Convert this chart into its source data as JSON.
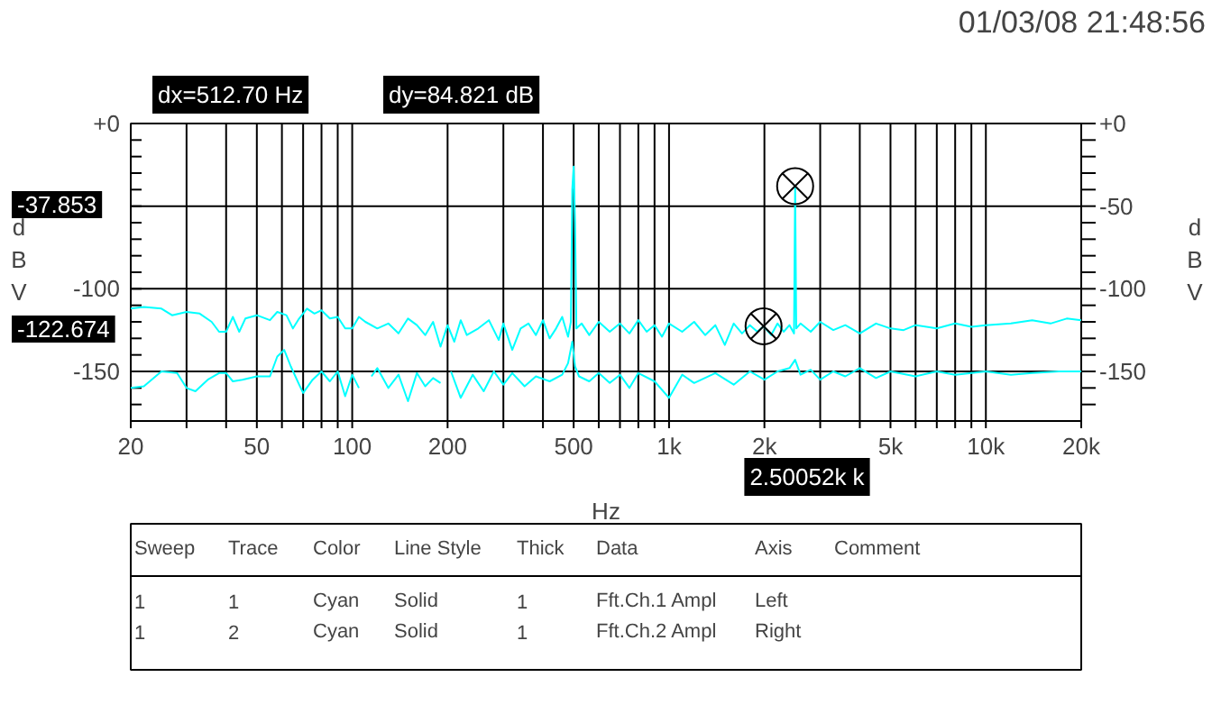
{
  "chart_data": {
    "type": "line",
    "xlabel": "Hz",
    "ylabel": "dBV",
    "y2label": "dBV",
    "xlim": [
      20,
      20000
    ],
    "xticks": [
      20,
      {
        "value": 30,
        "label": null
      },
      {
        "value": 40,
        "label": null
      },
      50,
      {
        "value": 60,
        "label": null
      },
      {
        "value": 70,
        "label": null
      },
      {
        "value": 80,
        "label": null
      },
      {
        "value": 90,
        "label": null
      },
      100,
      200,
      {
        "value": 300,
        "label": null
      },
      {
        "value": 400,
        "label": null
      },
      500,
      {
        "value": 600,
        "label": null
      },
      {
        "value": 700,
        "label": null
      },
      {
        "value": 800,
        "label": null
      },
      {
        "value": 900,
        "label": null
      },
      {
        "value": 1000,
        "label": "1k"
      },
      {
        "value": 2000,
        "label": "2k"
      },
      {
        "value": 3000,
        "label": null
      },
      {
        "value": 4000,
        "label": null
      },
      {
        "value": 5000,
        "label": "5k"
      },
      {
        "value": 6000,
        "label": null
      },
      {
        "value": 7000,
        "label": null
      },
      {
        "value": 8000,
        "label": null
      },
      {
        "value": 9000,
        "label": null
      },
      {
        "value": 10000,
        "label": "10k"
      },
      {
        "value": 20000,
        "label": "20k"
      }
    ],
    "ylim": [
      -180,
      0
    ],
    "yticks": [
      {
        "value": 0,
        "label": "+0"
      },
      {
        "value": -10,
        "label": null
      },
      {
        "value": -20,
        "label": null
      },
      {
        "value": -30,
        "label": null
      },
      {
        "value": -40,
        "label": null
      },
      {
        "value": -50,
        "label": null
      },
      {
        "value": -60,
        "label": null
      },
      {
        "value": -70,
        "label": null
      },
      {
        "value": -80,
        "label": null
      },
      {
        "value": -90,
        "label": null
      },
      -100,
      {
        "value": -110,
        "label": null
      },
      {
        "value": -120,
        "label": null
      },
      {
        "value": -130,
        "label": null
      },
      {
        "value": -140,
        "label": null
      },
      -150,
      {
        "value": -160,
        "label": null
      },
      {
        "value": -170,
        "label": null
      }
    ],
    "y2lim": [
      -180,
      0
    ],
    "y2ticks": [
      {
        "value": 0,
        "label": "+0"
      },
      {
        "value": -10,
        "label": null
      },
      {
        "value": -20,
        "label": null
      },
      {
        "value": -30,
        "label": null
      },
      {
        "value": -40,
        "label": null
      },
      -50,
      {
        "value": -60,
        "label": null
      },
      {
        "value": -70,
        "label": null
      },
      {
        "value": -80,
        "label": null
      },
      {
        "value": -90,
        "label": null
      },
      -100,
      {
        "value": -110,
        "label": null
      },
      {
        "value": -120,
        "label": null
      },
      {
        "value": -130,
        "label": null
      },
      {
        "value": -140,
        "label": null
      },
      -150,
      {
        "value": -160,
        "label": null
      },
      {
        "value": -170,
        "label": null
      }
    ],
    "grid": true,
    "line_style": "solid",
    "log": "x",
    "series": [
      {
        "color": "#00ffff",
        "x": [
          20,
          22,
          25,
          27,
          30,
          33,
          36,
          38,
          40,
          42,
          44,
          46,
          50,
          55,
          58,
          62,
          65,
          68,
          72,
          76,
          80,
          85,
          90,
          95,
          100,
          105,
          110,
          120,
          130,
          140,
          150,
          160,
          170,
          180,
          190,
          200,
          210,
          220,
          230,
          250,
          270,
          290,
          300,
          320,
          340,
          360,
          380,
          400,
          420,
          440,
          460,
          480,
          490,
          495,
          500,
          505,
          510,
          530,
          560,
          600,
          650,
          700,
          750,
          800,
          850,
          900,
          950,
          1000,
          1100,
          1200,
          1300,
          1400,
          1500,
          1600,
          1700,
          1800,
          1900,
          1988,
          2100,
          2200,
          2300,
          2400,
          2480,
          2500.52,
          2520,
          2600,
          2800,
          3000,
          3300,
          3600,
          4000,
          4500,
          5000,
          5500,
          6000,
          7000,
          8000,
          9000,
          10000,
          12000,
          14000,
          16000,
          18000,
          20000
        ],
        "values": [
          -112,
          -111,
          -112,
          -116,
          -114,
          -115,
          -120,
          -126,
          -126,
          -117,
          -126,
          -118,
          -116,
          -119,
          -114,
          -116,
          -124,
          -118,
          -112,
          -115,
          -113,
          -118,
          -117,
          -124,
          -124,
          -117,
          -120,
          -124,
          -121,
          -127,
          -118,
          -122,
          -128,
          -120,
          -135,
          -122,
          -132,
          -119,
          -128,
          -124,
          -119,
          -131,
          -121,
          -137,
          -124,
          -121,
          -128,
          -119,
          -130,
          -124,
          -117,
          -129,
          -120,
          -40,
          -26,
          -60,
          -124,
          -121,
          -128,
          -120,
          -126,
          -121,
          -127,
          -119,
          -126,
          -122,
          -129,
          -121,
          -126,
          -120,
          -128,
          -122,
          -134,
          -121,
          -127,
          -122,
          -126,
          -122.674,
          -128,
          -121,
          -126,
          -122,
          -127,
          -37.853,
          -124,
          -121,
          -126,
          -120,
          -125,
          -122,
          -127,
          -121,
          -124,
          -125,
          -122,
          -124,
          -121,
          -123,
          -122,
          -121,
          -119,
          -121,
          -118,
          -119
        ]
      },
      {
        "color": "#00ffff",
        "x": [
          20,
          22,
          25,
          28,
          30,
          32,
          35,
          38,
          40,
          42,
          45,
          50,
          55,
          58,
          61,
          64,
          68,
          70,
          75,
          80,
          85,
          90,
          95,
          100,
          105,
          110,
          115,
          120,
          130,
          140,
          150,
          160,
          170,
          180,
          190,
          198,
          205,
          220,
          240,
          260,
          280,
          300,
          320,
          350,
          380,
          420,
          460,
          480,
          495,
          505,
          520,
          560,
          600,
          650,
          700,
          750,
          800,
          900,
          1000,
          1100,
          1200,
          1400,
          1600,
          1800,
          2000,
          2200,
          2400,
          2500,
          2600,
          2800,
          3000,
          3300,
          3600,
          4000,
          4500,
          5000,
          6000,
          7000,
          8000,
          10000,
          12000,
          14000,
          17000,
          20000
        ],
        "values": [
          -160,
          -159,
          -150,
          -151,
          -160,
          -162,
          -155,
          -151,
          -151,
          -156,
          -155,
          -153,
          -153,
          -141,
          -137,
          -147,
          -158,
          -163,
          -155,
          -150,
          -156,
          -150,
          -165,
          -152,
          -160,
          null,
          -153,
          -148,
          -160,
          -152,
          -168,
          -151,
          -159,
          -154,
          -157,
          null,
          -150,
          -166,
          -152,
          -162,
          -150,
          -158,
          -151,
          -159,
          -153,
          -156,
          -152,
          -145,
          -132,
          -147,
          -153,
          -156,
          -151,
          -157,
          -152,
          -160,
          -151,
          -156,
          -166,
          -152,
          -157,
          -151,
          -158,
          -150,
          -155,
          -150,
          -148,
          -143,
          -152,
          -149,
          -155,
          -150,
          -153,
          -148,
          -154,
          -150,
          -153,
          -150,
          -152,
          -150,
          -152,
          -151,
          -150,
          -150
        ]
      },
      {
        "type": "scatter",
        "color": "#000000",
        "marker": "cross",
        "x": [
          1987.82,
          2500.52
        ],
        "values": [
          -122.674,
          -37.853
        ]
      }
    ],
    "annotations": [
      "01/03/08 21:48:56",
      "dx=512.70 Hz",
      "dy=84.821 dB",
      "-37.853",
      "-122.674",
      "2.50052k k",
      "Sweep",
      "Trace",
      "Color",
      "Line Style",
      "Thick",
      "Data",
      "Axis",
      "Comment",
      "1",
      "1",
      "Cyan",
      "Solid",
      "1",
      "Fft.Ch.1 Ampl",
      "Left",
      "1",
      "2",
      "Cyan",
      "Solid",
      "1",
      "Fft.Ch.2 Ampl",
      "Right"
    ]
  }
}
